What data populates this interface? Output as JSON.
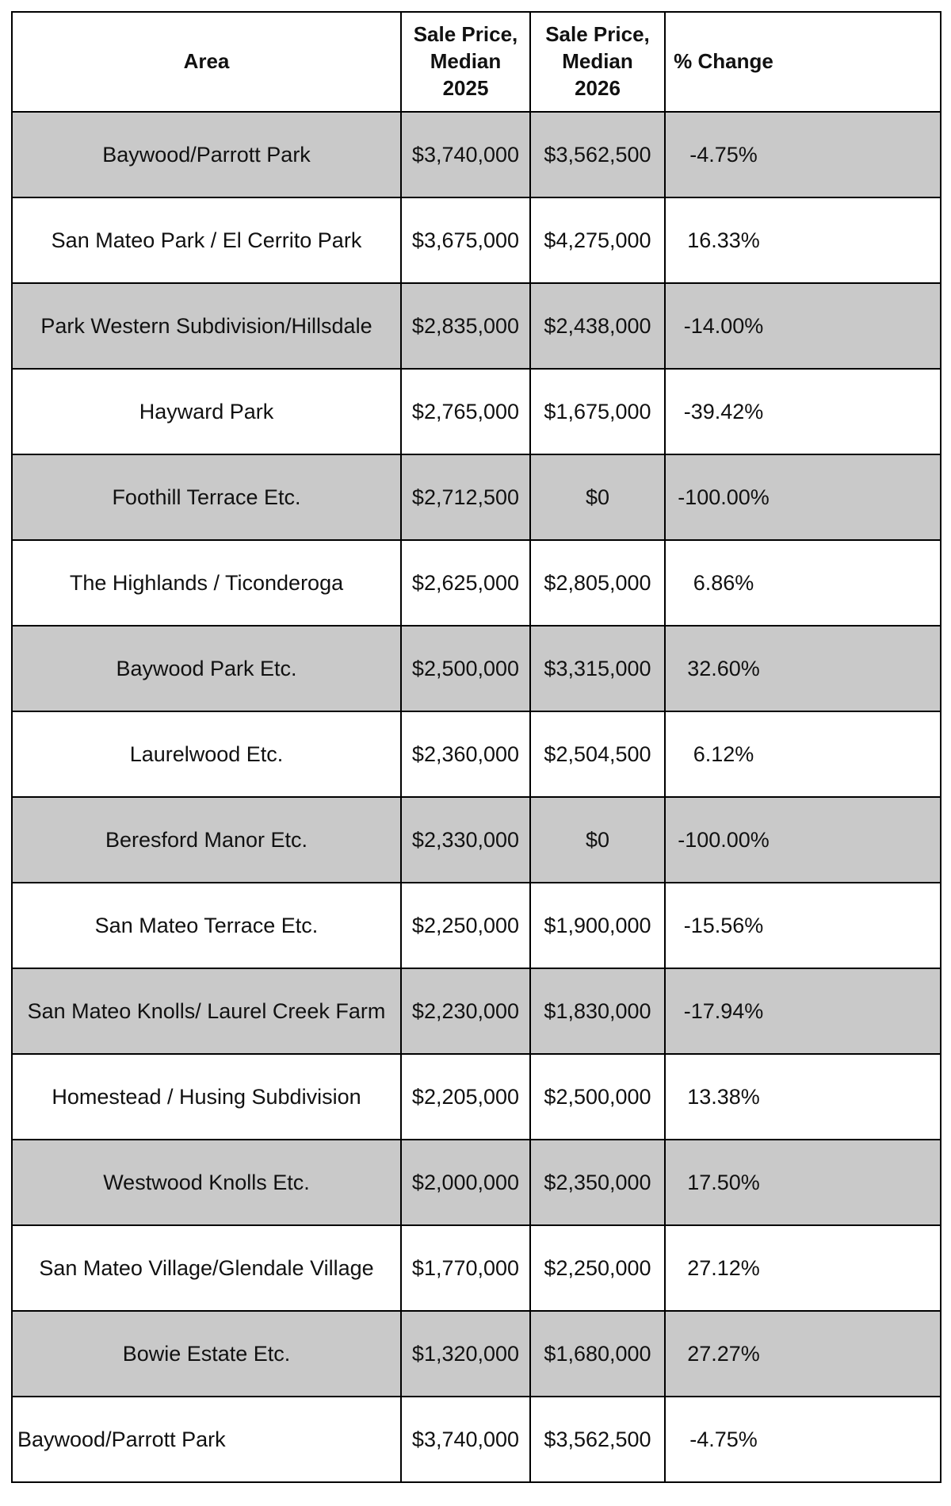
{
  "chart_data": {
    "type": "table",
    "columns": [
      "Area",
      "Sale Price, Median 2025",
      "Sale Price, Median 2026",
      "% Change"
    ],
    "rows": [
      [
        "Baywood/Parrott Park",
        "$3,740,000",
        "$3,562,500",
        "-4.75%"
      ],
      [
        "San Mateo Park / El Cerrito Park",
        "$3,675,000",
        "$4,275,000",
        "16.33%"
      ],
      [
        "Park Western Subdivision/Hillsdale",
        "$2,835,000",
        "$2,438,000",
        "-14.00%"
      ],
      [
        "Hayward Park",
        "$2,765,000",
        "$1,675,000",
        "-39.42%"
      ],
      [
        "Foothill Terrace Etc.",
        "$2,712,500",
        "$0",
        "-100.00%"
      ],
      [
        "The Highlands / Ticonderoga",
        "$2,625,000",
        "$2,805,000",
        "6.86%"
      ],
      [
        "Baywood Park Etc.",
        "$2,500,000",
        "$3,315,000",
        "32.60%"
      ],
      [
        "Laurelwood Etc.",
        "$2,360,000",
        "$2,504,500",
        "6.12%"
      ],
      [
        "Beresford Manor Etc.",
        "$2,330,000",
        "$0",
        "-100.00%"
      ],
      [
        "San Mateo Terrace Etc.",
        "$2,250,000",
        "$1,900,000",
        "-15.56%"
      ],
      [
        "San Mateo Knolls/ Laurel Creek Farm",
        "$2,230,000",
        "$1,830,000",
        "-17.94%"
      ],
      [
        "Homestead / Husing Subdivision",
        "$2,205,000",
        "$2,500,000",
        "13.38%"
      ],
      [
        "Westwood Knolls Etc.",
        "$2,000,000",
        "$2,350,000",
        "17.50%"
      ],
      [
        "San Mateo Village/Glendale Village",
        "$1,770,000",
        "$2,250,000",
        "27.12%"
      ],
      [
        "Bowie Estate Etc.",
        "$1,320,000",
        "$1,680,000",
        "27.27%"
      ],
      [
        "Baywood/Parrott Park",
        "$3,740,000",
        "$3,562,500",
        "-4.75%"
      ]
    ],
    "layout": {
      "row_striping": "alternating",
      "header_background": "#ffffff",
      "grid": true
    }
  },
  "header": {
    "area": "Area",
    "price_2025": "Sale Price,\nMedian\n2025",
    "price_2026": "Sale Price,\nMedian\n2026",
    "pct_change": "% Change"
  },
  "colors": {
    "row_shaded": "#c9c9c9",
    "row_plain": "#ffffff",
    "border": "#000000",
    "text": "#111111"
  }
}
